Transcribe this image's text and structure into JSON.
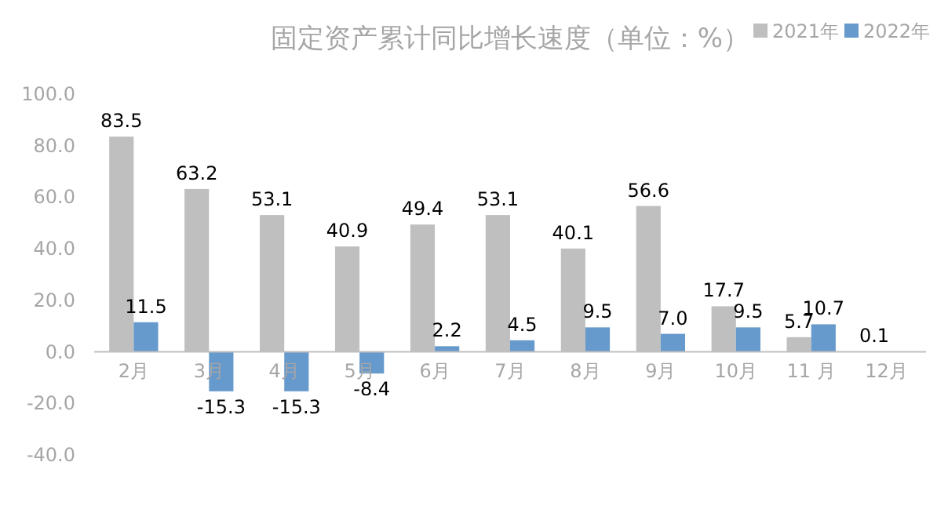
{
  "chart_data": {
    "type": "bar",
    "title": "固定资产累计同比增长速度（单位：%）",
    "categories": [
      "2月",
      "3月",
      "4月",
      "5月",
      "6月",
      "7月",
      "8月",
      "9月",
      "10月",
      "11 月",
      "12月"
    ],
    "series": [
      {
        "name": "2021年",
        "color": "#bfbfbf",
        "values": [
          83.5,
          63.2,
          53.1,
          40.9,
          49.4,
          53.1,
          40.1,
          56.6,
          17.7,
          5.7,
          0.1
        ],
        "value_labels": [
          "83.5",
          "63.2",
          "53.1",
          "40.9",
          "49.4",
          "53.1",
          "40.1",
          "56.6",
          "17.7",
          "5.7",
          "0.1"
        ]
      },
      {
        "name": "2022年",
        "color": "#6699cc",
        "values": [
          11.5,
          -15.3,
          -15.3,
          -8.4,
          2.2,
          4.5,
          9.5,
          7.0,
          9.5,
          10.7,
          null
        ],
        "value_labels": [
          "11.5",
          "-15.3",
          "-15.3",
          "-8.4",
          "2.2",
          "4.5",
          "9.5",
          "7.0",
          "9.5",
          "10.7",
          null
        ]
      }
    ],
    "ylim": [
      -40,
      100
    ],
    "yticks": [
      {
        "value": -40,
        "label": "-40.0"
      },
      {
        "value": -20,
        "label": "-20.0"
      },
      {
        "value": 0,
        "label": "0.0"
      },
      {
        "value": 20,
        "label": "20.0"
      },
      {
        "value": 40,
        "label": "40.0"
      },
      {
        "value": 60,
        "label": "60.0"
      },
      {
        "value": 80,
        "label": "80.0"
      },
      {
        "value": 100,
        "label": "100.0"
      }
    ],
    "grid": false,
    "legend": "top right"
  }
}
